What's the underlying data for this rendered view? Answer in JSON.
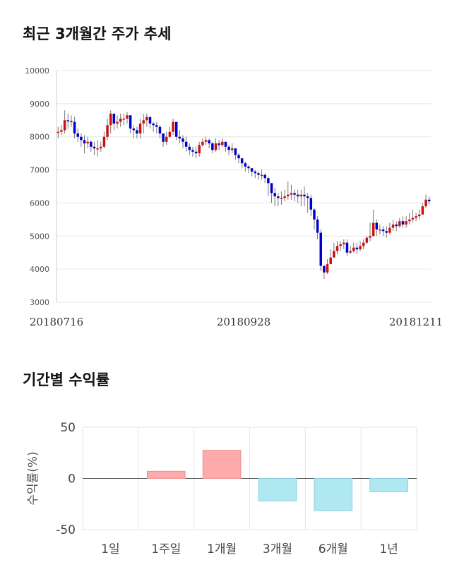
{
  "sections": {
    "price_title": "최근 3개월간 주가 추세",
    "returns_title": "기간별 수익률"
  },
  "chart_data": [
    {
      "type": "candlestick",
      "title": "최근 3개월간 주가 추세",
      "ylim": [
        3000,
        10000
      ],
      "yticks": [
        3000,
        4000,
        5000,
        6000,
        7000,
        8000,
        9000,
        10000
      ],
      "date_labels": [
        "20180716",
        "20180928",
        "20181211"
      ],
      "grid": true,
      "up_color": "#cc1111",
      "down_color": "#0000cc",
      "close": [
        8150,
        8200,
        8500,
        8480,
        8450,
        8100,
        8000,
        7900,
        7800,
        7850,
        7700,
        7650,
        7650,
        7700,
        8000,
        8350,
        8700,
        8400,
        8450,
        8550,
        8550,
        8650,
        8250,
        8200,
        8100,
        8400,
        8500,
        8600,
        8400,
        8350,
        8300,
        8100,
        7850,
        8000,
        8150,
        8450,
        8000,
        7950,
        7850,
        7700,
        7600,
        7550,
        7500,
        7750,
        7850,
        7900,
        7800,
        7600,
        7800,
        7750,
        7850,
        7700,
        7600,
        7650,
        7450,
        7350,
        7200,
        7100,
        7050,
        6950,
        6900,
        6850,
        6850,
        6750,
        6600,
        6300,
        6200,
        6150,
        6150,
        6200,
        6250,
        6300,
        6250,
        6200,
        6250,
        6200,
        6150,
        5800,
        5500,
        5100,
        4100,
        3900,
        4150,
        4350,
        4550,
        4700,
        4750,
        4800,
        4500,
        4550,
        4650,
        4600,
        4700,
        4800,
        4950,
        5000,
        5400,
        5200,
        5200,
        5150,
        5100,
        5250,
        5350,
        5300,
        5450,
        5350,
        5450,
        5500,
        5550,
        5600,
        5650,
        5900,
        6100,
        6050
      ],
      "wick_high": [
        8300,
        8350,
        8800,
        8700,
        8650,
        8600,
        8250,
        8100,
        8050,
        8000,
        7900,
        7850,
        7900,
        7850,
        8150,
        8550,
        8800,
        8700,
        8650,
        8700,
        8700,
        8750,
        8650,
        8350,
        8300,
        8550,
        8700,
        8700,
        8600,
        8450,
        8450,
        8350,
        8050,
        8150,
        8300,
        8550,
        8450,
        8200,
        8050,
        8000,
        7800,
        7700,
        7700,
        7850,
        7950,
        8000,
        7950,
        7850,
        7950,
        7900,
        7950,
        7850,
        7750,
        7800,
        7650,
        7500,
        7300,
        7250,
        7150,
        7050,
        7000,
        6950,
        7000,
        6900,
        6800,
        6600,
        6450,
        6300,
        6350,
        6400,
        6650,
        6550,
        6400,
        6400,
        6400,
        6500,
        6300,
        6250,
        5850,
        5600,
        5200,
        4100,
        4300,
        4600,
        4800,
        4850,
        4850,
        4900,
        4900,
        4700,
        4800,
        4800,
        4850,
        4900,
        5000,
        5400,
        5800,
        5500,
        5350,
        5300,
        5300,
        5400,
        5500,
        5450,
        5550,
        5600,
        5600,
        5700,
        5800,
        5700,
        5800,
        6000,
        6250,
        6200
      ],
      "wick_low": [
        7950,
        8050,
        8100,
        8250,
        8300,
        7950,
        7850,
        7700,
        7500,
        7650,
        7550,
        7450,
        7400,
        7550,
        7650,
        7900,
        8100,
        8200,
        8250,
        8300,
        8350,
        8400,
        8100,
        7950,
        7950,
        7950,
        8100,
        8300,
        8250,
        8150,
        8100,
        7950,
        7700,
        7750,
        7950,
        8050,
        7900,
        7800,
        7650,
        7550,
        7450,
        7400,
        7350,
        7400,
        7700,
        7750,
        7650,
        7500,
        7550,
        7600,
        7700,
        7550,
        7450,
        7500,
        7300,
        7200,
        7050,
        6950,
        6900,
        6800,
        6750,
        6700,
        6700,
        6600,
        6200,
        6000,
        5900,
        5900,
        5950,
        6050,
        6100,
        6100,
        6050,
        6000,
        5900,
        5900,
        5700,
        5600,
        5200,
        4900,
        3950,
        3700,
        3850,
        4200,
        4350,
        4450,
        4550,
        4600,
        4400,
        4450,
        4500,
        4450,
        4550,
        4600,
        4750,
        4850,
        5000,
        5000,
        5050,
        5000,
        4950,
        5050,
        5150,
        5150,
        5250,
        5250,
        5250,
        5350,
        5400,
        5450,
        5500,
        5650,
        5850,
        5950
      ]
    },
    {
      "type": "bar",
      "title": "기간별 수익률",
      "categories": [
        "1일",
        "1주일",
        "1개월",
        "3개월",
        "6개월",
        "1년"
      ],
      "values": [
        0,
        7,
        27.5,
        -22,
        -31.5,
        -13
      ],
      "ylabel": "수익률(%)",
      "ylim": [
        -50,
        50
      ],
      "yticks": [
        -50,
        0,
        50
      ],
      "grid": true,
      "positive_color": "#ffaaaa",
      "negative_color": "#b0e8f2"
    }
  ]
}
